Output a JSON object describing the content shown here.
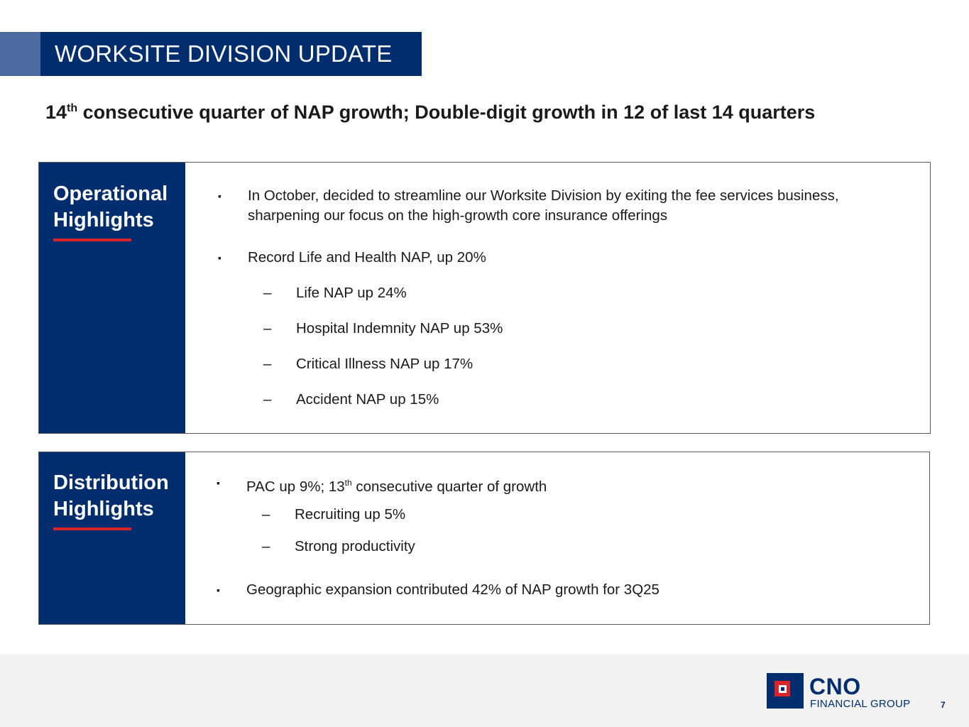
{
  "header": {
    "title": "WORKSITE DIVISION UPDATE",
    "subtitle_prefix": "14",
    "subtitle_sup": "th",
    "subtitle_rest": " consecutive quarter of NAP growth; Double-digit growth in 12 of last 14 quarters"
  },
  "operational": {
    "heading_line1": "Operational",
    "heading_line2": "Highlights",
    "bullet_marker": "▪",
    "dash_marker": "–",
    "bullets": [
      "In October, decided to streamline our Worksite Division by exiting the fee services business, sharpening our focus on the high-growth core insurance offerings",
      "Record Life and Health NAP, up 20%"
    ],
    "sub_bullets": [
      "Life NAP up 24%",
      "Hospital Indemnity NAP up 53%",
      "Critical Illness NAP up 17%",
      "Accident NAP up 15%"
    ]
  },
  "distribution": {
    "heading_line1": "Distribution",
    "heading_line2": "Highlights",
    "bullet1_prefix": "PAC up 9%; 13",
    "bullet1_sup": "th",
    "bullet1_rest": " consecutive quarter of growth",
    "sub_bullets": [
      "Recruiting up 5%",
      "Strong productivity"
    ],
    "bullet2": "Geographic expansion contributed 42% of NAP growth for 3Q25"
  },
  "footer": {
    "logo_name": "CNO",
    "logo_tagline": "FINANCIAL GROUP",
    "page_number": "7"
  },
  "colors": {
    "navy": "#002d6e",
    "accent_blue": "#4a6aa0",
    "red": "#d9252a",
    "footer_gray": "#f2f2f2"
  },
  "icons": {
    "logo": "cno-square-logo-icon",
    "bullet": "square-bullet-icon",
    "dash": "dash-bullet-icon"
  }
}
